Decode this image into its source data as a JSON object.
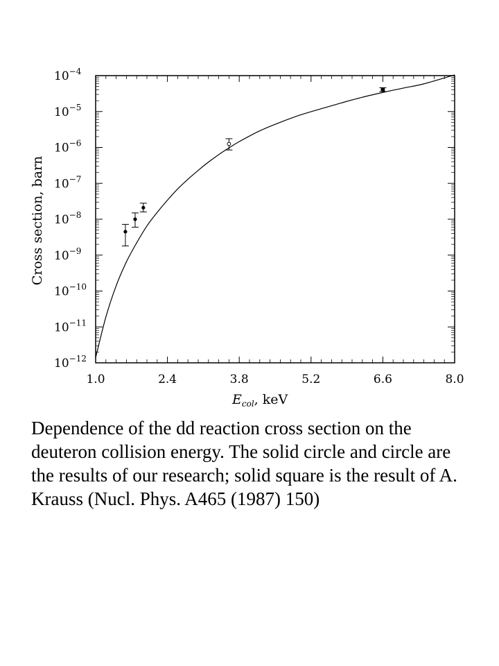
{
  "chart_data": {
    "type": "scatter",
    "xlabel_main": "E",
    "xlabel_sub": "col",
    "xlabel_rest": ", keV",
    "ylabel": "Cross section, barn",
    "xlim": [
      1.0,
      8.0
    ],
    "ylim_log10": [
      -12,
      -4
    ],
    "y_scale": "log",
    "x_ticks": [
      "1.0",
      "2.4",
      "3.8",
      "5.2",
      "6.6",
      "8.0"
    ],
    "y_ticks": [
      {
        "exp": -4,
        "base": "10",
        "sup": "−4"
      },
      {
        "exp": -5,
        "base": "10",
        "sup": "−5"
      },
      {
        "exp": -6,
        "base": "10",
        "sup": "−6"
      },
      {
        "exp": -7,
        "base": "10",
        "sup": "−7"
      },
      {
        "exp": -8,
        "base": "10",
        "sup": "−8"
      },
      {
        "exp": -9,
        "base": "10",
        "sup": "−9"
      },
      {
        "exp": -10,
        "base": "10",
        "sup": "−10"
      },
      {
        "exp": -11,
        "base": "10",
        "sup": "−11"
      },
      {
        "exp": -12,
        "base": "10",
        "sup": "−12"
      }
    ],
    "curve": {
      "x": [
        1.0,
        1.2,
        1.4,
        1.6,
        1.8,
        2.0,
        2.2,
        2.4,
        2.6,
        2.8,
        3.0,
        3.2,
        3.4,
        3.6,
        3.8,
        4.2,
        4.6,
        5.0,
        5.4,
        5.8,
        6.2,
        6.6,
        7.0,
        7.4,
        8.0
      ],
      "y": [
        1.4e-12,
        1.9e-11,
        1.4e-10,
        6.5e-10,
        2.2e-09,
        6.5e-09,
        1.55e-08,
        3.4e-08,
        7e-08,
        1.3e-07,
        2.3e-07,
        3.9e-07,
        6.3e-07,
        9.7e-07,
        1.45e-06,
        2.9e-06,
        5e-06,
        8.1e-06,
        1.2e-05,
        1.75e-05,
        2.5e-05,
        3.4e-05,
        4.5e-05,
        5.9e-05,
        0.000105
      ]
    },
    "series": [
      {
        "marker": "solid-circle",
        "points": [
          {
            "x": 1.58,
            "y": 4.5e-09,
            "y_low": 1.8e-09,
            "y_high": 7.2e-09
          },
          {
            "x": 1.77,
            "y": 1e-08,
            "y_low": 6e-09,
            "y_high": 1.5e-08
          },
          {
            "x": 1.93,
            "y": 2.1e-08,
            "y_low": 1.6e-08,
            "y_high": 2.8e-08
          }
        ]
      },
      {
        "marker": "circle",
        "points": [
          {
            "x": 3.6,
            "y": 1.25e-06,
            "y_low": 8.5e-07,
            "y_high": 1.75e-06
          }
        ]
      },
      {
        "marker": "solid-square",
        "points": [
          {
            "x": 6.6,
            "y": 4.1e-05,
            "y_low": 3.6e-05,
            "y_high": 4.6e-05
          }
        ]
      }
    ],
    "grid": false
  },
  "caption": "Dependence of the dd reaction cross section on the deuteron collision energy. The solid circle and circle are the results of our research; solid square is the result of A. Krauss (Nucl. Phys. A465 (1987) 150)"
}
